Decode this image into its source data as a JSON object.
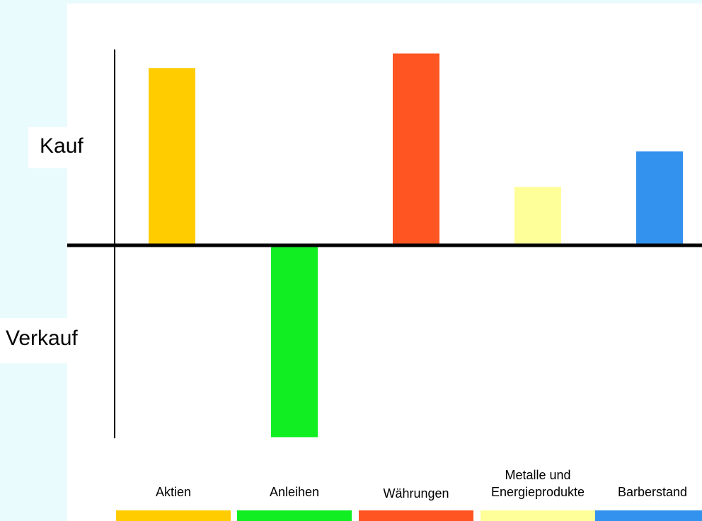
{
  "chart_data": {
    "type": "bar",
    "title": "",
    "xlabel": "",
    "ylabel": "",
    "y_labels": {
      "positive": "Kauf",
      "negative": "Verkauf"
    },
    "categories": [
      "Aktien",
      "Anleihen",
      "Währungen",
      "Metalle und\nEnergieprodukte",
      "Barberstand"
    ],
    "values": [
      0.85,
      -0.92,
      0.92,
      0.28,
      0.45
    ],
    "colors": [
      "#ffcc00",
      "#11ee22",
      "#ff5522",
      "#ffff99",
      "#3392ee"
    ],
    "ylim": [
      -1,
      1
    ],
    "grid": false,
    "legend": "none"
  }
}
